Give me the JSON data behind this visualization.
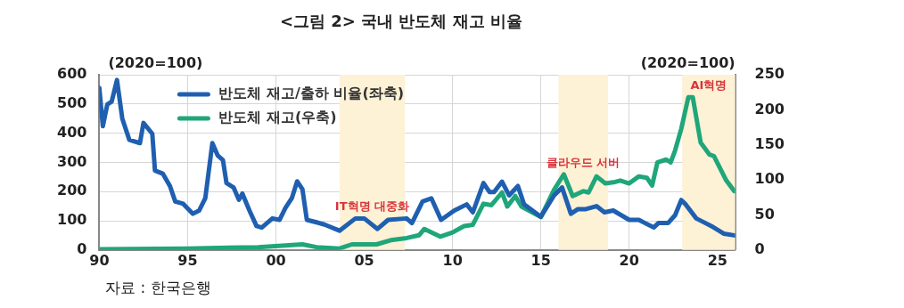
{
  "chart_data": {
    "type": "line",
    "title": "<그림 2> 국내 반도체 재고 비율",
    "ylabel": "(2020=100)",
    "y2label": "(2020=100)",
    "annotations": [
      "자료 : 한국은행"
    ],
    "xlim": [
      1990,
      2026
    ],
    "xticks": [
      {
        "value": 1990,
        "label": "90"
      },
      {
        "value": 1995,
        "label": "95"
      },
      {
        "value": 2000,
        "label": "00"
      },
      {
        "value": 2005,
        "label": "05"
      },
      {
        "value": 2010,
        "label": "10"
      },
      {
        "value": 2015,
        "label": "15"
      },
      {
        "value": 2020,
        "label": "20"
      },
      {
        "value": 2025,
        "label": "25"
      }
    ],
    "ylim": [
      0,
      600
    ],
    "yticks": [
      0,
      100,
      200,
      300,
      400,
      500,
      600
    ],
    "y2lim": [
      0,
      250
    ],
    "y2ticks": [
      0,
      50,
      100,
      150,
      200,
      250
    ],
    "grid": true,
    "legend": "top left",
    "marker": "none",
    "line_style": "solid",
    "bands": [
      {
        "axis": "x",
        "from": 2003.6,
        "to": 2007.3,
        "label": "IT혁명 대중화",
        "color": "#fdf1d6"
      },
      {
        "axis": "x",
        "from": 2016.0,
        "to": 2018.8,
        "label": "클라우드 서버",
        "color": "#fdf1d6"
      },
      {
        "axis": "x",
        "from": 2023.0,
        "to": 2026.0,
        "label": "AI혁명",
        "color": "#fdf1d6"
      }
    ],
    "series": [
      {
        "name": "반도체 재고/출하 비율(좌축)",
        "color": "#1f5fb0",
        "x": [
          1990.0,
          1990.2,
          1990.45,
          1990.7,
          1991.0,
          1991.3,
          1991.7,
          1992.3,
          1992.5,
          1993.0,
          1993.15,
          1993.6,
          1994.0,
          1994.3,
          1994.75,
          1995.3,
          1995.65,
          1996.0,
          1996.4,
          1996.7,
          1997.0,
          1997.2,
          1997.6,
          1997.9,
          1998.1,
          1998.5,
          1998.9,
          1999.2,
          1999.8,
          2000.2,
          2000.55,
          2000.9,
          2001.2,
          2001.5,
          2001.75,
          2002.4,
          2002.75,
          2003.6,
          2004.5,
          2005.0,
          2005.75,
          2006.35,
          2007.4,
          2007.7,
          2008.3,
          2008.8,
          2009.35,
          2010.1,
          2010.8,
          2011.15,
          2011.75,
          2012.1,
          2012.35,
          2012.8,
          2013.2,
          2013.7,
          2014.05,
          2015.0,
          2015.75,
          2016.2,
          2016.7,
          2017.1,
          2017.55,
          2018.15,
          2018.6,
          2019.1,
          2020.0,
          2020.55,
          2020.9,
          2021.4,
          2021.65,
          2022.2,
          2022.6,
          2022.95,
          2023.2,
          2023.8,
          2024.65,
          2025.35,
          2025.95
        ],
        "values": [
          555,
          424,
          498,
          508,
          582,
          450,
          377,
          366,
          435,
          398,
          272,
          261,
          219,
          166,
          158,
          124,
          135,
          177,
          366,
          324,
          308,
          229,
          214,
          172,
          193,
          135,
          82,
          77,
          108,
          103,
          145,
          177,
          235,
          208,
          103,
          93,
          87,
          66,
          108,
          108,
          72,
          103,
          108,
          92,
          166,
          177,
          103,
          135,
          156,
          129,
          229,
          198,
          198,
          234,
          187,
          219,
          156,
          114,
          187,
          214,
          124,
          140,
          140,
          150,
          129,
          135,
          103,
          103,
          92,
          77,
          92,
          92,
          119,
          171,
          156,
          108,
          82,
          56,
          50
        ]
      },
      {
        "name": "반도체 재고(우축)",
        "color": "#1fa67a",
        "axis": "y2",
        "x": [
          1990.0,
          1995.0,
          1999.0,
          2001.5,
          2002.3,
          2003.6,
          2004.3,
          2005.7,
          2006.5,
          2007.4,
          2008.1,
          2008.4,
          2009.3,
          2010.0,
          2010.65,
          2011.15,
          2011.75,
          2012.2,
          2012.8,
          2013.1,
          2013.55,
          2013.9,
          2015.0,
          2015.75,
          2016.3,
          2016.8,
          2017.4,
          2017.7,
          2018.15,
          2018.65,
          2019.2,
          2019.5,
          2020.0,
          2020.55,
          2021.0,
          2021.3,
          2021.6,
          2022.1,
          2022.35,
          2022.6,
          2022.95,
          2023.35,
          2023.6,
          2024.05,
          2024.55,
          2024.8,
          2025.5,
          2025.95
        ],
        "values": [
          1,
          2,
          4,
          8,
          4,
          2,
          8,
          8,
          14,
          17,
          21,
          30,
          19,
          25,
          34,
          36,
          66,
          64,
          82,
          62,
          77,
          62,
          47,
          86,
          108,
          77,
          84,
          82,
          105,
          95,
          97,
          99,
          95,
          105,
          103,
          92,
          125,
          129,
          125,
          142,
          173,
          218,
          218,
          153,
          136,
          134,
          99,
          84
        ]
      }
    ]
  }
}
